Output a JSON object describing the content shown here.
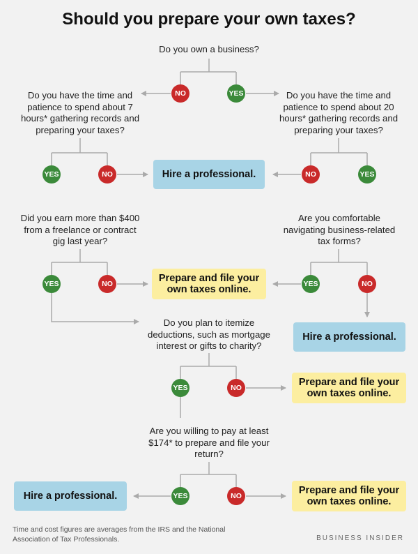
{
  "title": "Should you prepare your own taxes?",
  "questions": {
    "q_business": "Do you own a business?",
    "q_time_7": "Do you have the time and patience to spend about 7 hours* gathering records and preparing your taxes?",
    "q_time_20": "Do you have the time and patience to spend about 20 hours* gathering records and preparing your taxes?",
    "q_freelance": "Did you earn more than $400 from a freelance or contract gig last year?",
    "q_forms": "Are you comfortable navigating business-related tax forms?",
    "q_itemize": "Do you plan to itemize deductions, such as mortgage interest or gifts to charity?",
    "q_pay": "Are you willing to pay at least $174* to prepare and file your return?"
  },
  "answers": {
    "yes": "YES",
    "no": "NO"
  },
  "outcomes": {
    "hire": "Hire a professional.",
    "prepare": "Prepare and file your own taxes online."
  },
  "colors": {
    "yes": "#3b8a3a",
    "no": "#c92a2a",
    "hire_box": "#a8d4e6",
    "prepare_box": "#fceea0",
    "connector": "#aaaaaa"
  },
  "footnote": "Time and cost figures are averages from the IRS and the National Association of Tax Professionals.",
  "brand": "BUSINESS INSIDER"
}
